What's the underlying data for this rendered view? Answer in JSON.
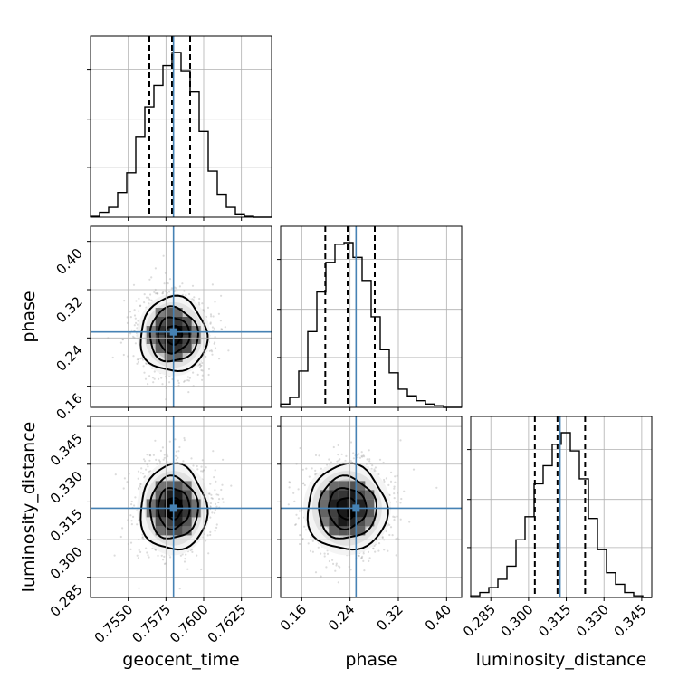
{
  "chart_data": {
    "type": "corner",
    "parameters": [
      "geocent_time",
      "phase",
      "luminosity_distance"
    ],
    "axis_labels": {
      "geocent_time": "geocent_time",
      "phase": "phase",
      "luminosity_distance": "luminosity_distance"
    },
    "ranges": {
      "geocent_time": [
        0.7525,
        0.7645
      ],
      "phase": [
        0.125,
        0.425
      ],
      "luminosity_distance": [
        0.277,
        0.349
      ]
    },
    "ticks": {
      "geocent_time": [
        "0.7550",
        "0.7575",
        "0.7600",
        "0.7625"
      ],
      "phase": [
        "0.16",
        "0.24",
        "0.32",
        "0.40"
      ],
      "luminosity_distance": [
        "0.285",
        "0.300",
        "0.315",
        "0.330",
        "0.345"
      ]
    },
    "truths": {
      "geocent_time": 0.758,
      "phase": 0.25,
      "luminosity_distance": 0.3125
    },
    "quantiles": {
      "geocent_time": [
        0.7564,
        0.7579,
        0.7591
      ],
      "phase": [
        0.199,
        0.236,
        0.281
      ],
      "luminosity_distance": [
        0.3025,
        0.3115,
        0.3225
      ]
    },
    "histograms": {
      "geocent_time": {
        "edges": [
          0.7525,
          0.7531,
          0.7537,
          0.7543,
          0.7549,
          0.7555,
          0.7561,
          0.7567,
          0.7573,
          0.7579,
          0.7585,
          0.7591,
          0.7597,
          0.7603,
          0.7609,
          0.7615,
          0.7621,
          0.7627,
          0.7633,
          0.7639,
          0.7645
        ],
        "counts": [
          0.5,
          3,
          6,
          15,
          27,
          49,
          67,
          80,
          92,
          100,
          89,
          76,
          52,
          28,
          14,
          6,
          2,
          0.5,
          0,
          0
        ]
      },
      "phase": {
        "edges": [
          0.125,
          0.14,
          0.155,
          0.17,
          0.185,
          0.2,
          0.215,
          0.23,
          0.245,
          0.26,
          0.275,
          0.29,
          0.305,
          0.32,
          0.335,
          0.35,
          0.365,
          0.38,
          0.395,
          0.41,
          0.425
        ],
        "counts": [
          2,
          6,
          22,
          46,
          70,
          88,
          99,
          100,
          91,
          77,
          55,
          35,
          21,
          11,
          7,
          4,
          2,
          1,
          0,
          0
        ]
      },
      "luminosity_distance": {
        "edges": [
          0.277,
          0.2806,
          0.2842,
          0.2878,
          0.2914,
          0.295,
          0.2986,
          0.3022,
          0.3058,
          0.3094,
          0.313,
          0.3166,
          0.3202,
          0.3238,
          0.3274,
          0.331,
          0.3346,
          0.3382,
          0.3418,
          0.3454,
          0.349
        ],
        "counts": [
          1,
          3,
          6,
          11,
          19,
          35,
          49,
          69,
          80,
          93,
          100,
          89,
          72,
          48,
          29,
          15,
          8,
          3,
          1,
          0
        ]
      }
    },
    "density_2d": {
      "phase_vs_geocent_time": {
        "center": [
          0.758,
          0.245
        ],
        "sigma": [
          0.0011,
          0.031
        ]
      },
      "luminosity_distance_vs_geocent_time": {
        "center": [
          0.758,
          0.3125
        ],
        "sigma": [
          0.0011,
          0.0085
        ]
      },
      "luminosity_distance_vs_phase": {
        "center": [
          0.235,
          0.3125
        ],
        "sigma": [
          0.033,
          0.0085
        ]
      }
    },
    "grid": true,
    "colors": {
      "truth": "#4682b4",
      "histogram": "#000000",
      "contour": "#000000",
      "scatter": "#9a9a9a"
    }
  }
}
